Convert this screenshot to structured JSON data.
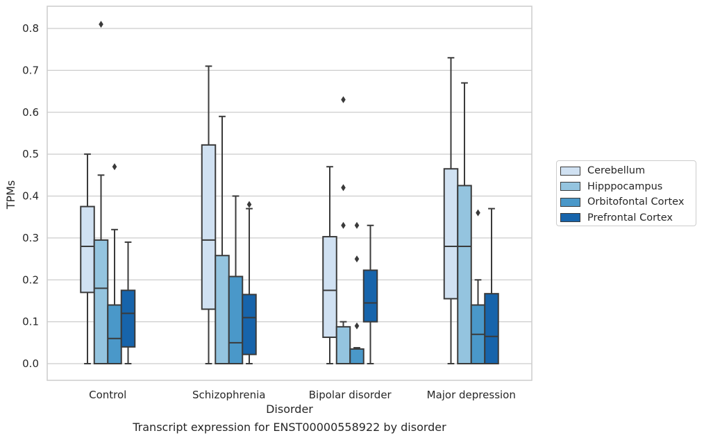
{
  "chart_data": {
    "type": "box",
    "xlabel": "Disorder",
    "ylabel": "TPMs",
    "caption": "Transcript expression for ENST00000558922 by disorder",
    "categories": [
      "Control",
      "Schizophrenia",
      "Bipolar disorder",
      "Major depression"
    ],
    "ylim": [
      -0.04,
      0.85
    ],
    "yticks": [
      "0.0",
      "0.1",
      "0.2",
      "0.3",
      "0.4",
      "0.5",
      "0.6",
      "0.7",
      "0.8"
    ],
    "grid": true,
    "legend_position": "right",
    "series": [
      {
        "name": "Cerebellum",
        "color": "#d0e1f2",
        "boxes": [
          {
            "whislo": 0.0,
            "q1": 0.17,
            "med": 0.28,
            "q3": 0.375,
            "whishi": 0.5,
            "fliers": []
          },
          {
            "whislo": 0.0,
            "q1": 0.13,
            "med": 0.295,
            "q3": 0.522,
            "whishi": 0.71,
            "fliers": []
          },
          {
            "whislo": 0.0,
            "q1": 0.063,
            "med": 0.175,
            "q3": 0.303,
            "whishi": 0.47,
            "fliers": []
          },
          {
            "whislo": 0.0,
            "q1": 0.155,
            "med": 0.28,
            "q3": 0.465,
            "whishi": 0.73,
            "fliers": []
          }
        ]
      },
      {
        "name": "Hipppocampus",
        "color": "#94c4df",
        "boxes": [
          {
            "whislo": 0.0,
            "q1": 0.0,
            "med": 0.18,
            "q3": 0.295,
            "whishi": 0.45,
            "fliers": [
              0.81
            ]
          },
          {
            "whislo": 0.0,
            "q1": 0.0,
            "med": 0.0,
            "q3": 0.258,
            "whishi": 0.59,
            "fliers": []
          },
          {
            "whislo": 0.0,
            "q1": 0.0,
            "med": 0.0,
            "q3": 0.088,
            "whishi": 0.1,
            "fliers": [
              0.42,
              0.33,
              0.63
            ]
          },
          {
            "whislo": 0.0,
            "q1": 0.0,
            "med": 0.28,
            "q3": 0.425,
            "whishi": 0.67,
            "fliers": []
          }
        ]
      },
      {
        "name": "Orbitofontal Cortex",
        "color": "#4a98c9",
        "boxes": [
          {
            "whislo": 0.0,
            "q1": 0.0,
            "med": 0.06,
            "q3": 0.14,
            "whishi": 0.32,
            "fliers": [
              0.47
            ]
          },
          {
            "whislo": 0.0,
            "q1": 0.0,
            "med": 0.05,
            "q3": 0.208,
            "whishi": 0.4,
            "fliers": []
          },
          {
            "whislo": 0.0,
            "q1": 0.0,
            "med": 0.0,
            "q3": 0.035,
            "whishi": 0.038,
            "fliers": [
              0.09,
              0.25,
              0.33
            ]
          },
          {
            "whislo": 0.0,
            "q1": 0.0,
            "med": 0.07,
            "q3": 0.14,
            "whishi": 0.2,
            "fliers": [
              0.36
            ]
          }
        ]
      },
      {
        "name": "Prefrontal Cortex",
        "color": "#1764ab",
        "boxes": [
          {
            "whislo": 0.0,
            "q1": 0.04,
            "med": 0.12,
            "q3": 0.175,
            "whishi": 0.29,
            "fliers": []
          },
          {
            "whislo": 0.0,
            "q1": 0.022,
            "med": 0.11,
            "q3": 0.165,
            "whishi": 0.37,
            "fliers": [
              0.38
            ]
          },
          {
            "whislo": 0.0,
            "q1": 0.1,
            "med": 0.145,
            "q3": 0.223,
            "whishi": 0.33,
            "fliers": []
          },
          {
            "whislo": 0.0,
            "q1": 0.0,
            "med": 0.065,
            "q3": 0.167,
            "whishi": 0.37,
            "fliers": []
          }
        ]
      }
    ]
  }
}
